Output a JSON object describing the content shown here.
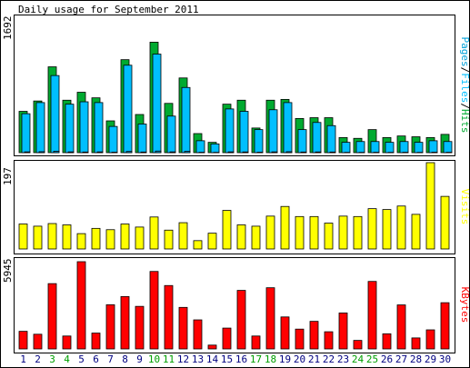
{
  "chart_data": {
    "type": "bar",
    "title": "Daily usage for September 2011",
    "categories": [
      "1",
      "2",
      "3",
      "4",
      "5",
      "6",
      "7",
      "8",
      "9",
      "10",
      "11",
      "12",
      "13",
      "14",
      "15",
      "16",
      "17",
      "18",
      "19",
      "20",
      "21",
      "22",
      "23",
      "24",
      "25",
      "26",
      "27",
      "28",
      "29",
      "30"
    ],
    "weekend_days": [
      "3",
      "4",
      "10",
      "11",
      "17",
      "18",
      "24",
      "25"
    ],
    "colors": {
      "hits": "#00aa30",
      "files": "#00bfff",
      "pages": "#00a0d8",
      "visits": "#ffff00",
      "kbytes": "#ff0000",
      "weekday_label": "#000080",
      "weekend_label": "#00a000",
      "background": "#ffffff",
      "frame": "#000000"
    },
    "panels": [
      {
        "id": "hits_files_pages",
        "ymax_label": "1692",
        "legend": [
          "Pages",
          "Files",
          "Hits"
        ],
        "series": [
          {
            "name": "Hits",
            "values": [
              520,
              650,
              1080,
              660,
              760,
              690,
              400,
              1170,
              480,
              1390,
              620,
              940,
              240,
              130,
              610,
              660,
              310,
              660,
              670,
              430,
              440,
              440,
              190,
              180,
              290,
              190,
              210,
              200,
              190,
              230
            ]
          },
          {
            "name": "Files",
            "values": [
              490,
              630,
              970,
              610,
              640,
              630,
              330,
              1100,
              360,
              1240,
              460,
              820,
              150,
              110,
              550,
              520,
              290,
              540,
              630,
              290,
              380,
              340,
              130,
              140,
              140,
              130,
              140,
              130,
              150,
              140
            ]
          },
          {
            "name": "Pages",
            "values": [
              10,
              12,
              18,
              10,
              8,
              10,
              6,
              15,
              8,
              20,
              10,
              16,
              5,
              4,
              10,
              9,
              6,
              10,
              12,
              8,
              9,
              8,
              4,
              4,
              5,
              4,
              5,
              4,
              6,
              5
            ]
          }
        ]
      },
      {
        "id": "visits",
        "ymax_label": "197",
        "legend": [
          "Visits"
        ],
        "series": [
          {
            "name": "Visits",
            "values": [
              57,
              52,
              58,
              55,
              35,
              47,
              44,
              57,
              50,
              73,
              43,
              60,
              19,
              36,
              88,
              55,
              52,
              75,
              97,
              74,
              74,
              59,
              75,
              74,
              92,
              90,
              98,
              79,
              197,
              120
            ]
          }
        ]
      },
      {
        "id": "kbytes",
        "ymax_label": "5945",
        "legend": [
          "KBytes"
        ],
        "series": [
          {
            "name": "KBytes",
            "values": [
              1200,
              1000,
              4450,
              880,
              5945,
              1080,
              3010,
              3570,
              2900,
              5280,
              4320,
              2830,
              1980,
              260,
              1420,
              3990,
              880,
              4170,
              2180,
              1350,
              1880,
              1170,
              2450,
              580,
              4600,
              1030,
              3000,
              750,
              1300,
              3150
            ]
          }
        ]
      }
    ]
  }
}
